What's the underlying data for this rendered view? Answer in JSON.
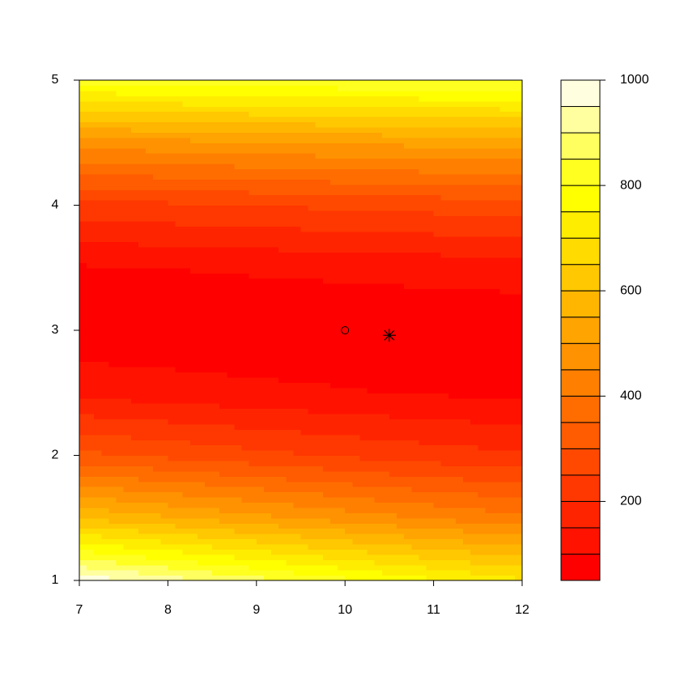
{
  "chart_data": {
    "type": "filled-contour",
    "x": [
      7,
      8,
      9,
      10,
      11,
      12
    ],
    "y": [
      1,
      1.5,
      2,
      2.5,
      3,
      3.5,
      4,
      4.5,
      5
    ],
    "z": [
      [
        986,
        926,
        868,
        813,
        760,
        710
      ],
      [
        598,
        557,
        517,
        480,
        446,
        413
      ],
      [
        314,
        289,
        266,
        244,
        224,
        206
      ],
      [
        136,
        124,
        113,
        104,
        96,
        89
      ],
      [
        62,
        61,
        60,
        60,
        61,
        62
      ],
      [
        94,
        100,
        106,
        112,
        118,
        125
      ],
      [
        230,
        240,
        250,
        260,
        269,
        278
      ],
      [
        472,
        483,
        494,
        504,
        513,
        521
      ],
      [
        818,
        828,
        836,
        843,
        849,
        854
      ]
    ],
    "xlim": [
      7,
      12
    ],
    "xticks": [
      7,
      8,
      9,
      10,
      11,
      12
    ],
    "ylim": [
      1,
      5
    ],
    "yticks": [
      1,
      2,
      3,
      4,
      5
    ],
    "levels": [
      50,
      100,
      150,
      200,
      250,
      300,
      350,
      400,
      450,
      500,
      550,
      600,
      650,
      700,
      750,
      800,
      850,
      900,
      950,
      1000
    ],
    "colors": [
      "#FF0000",
      "#FF1200",
      "#FF2400",
      "#FF3700",
      "#FF4900",
      "#FF5B00",
      "#FF6D00",
      "#FF8000",
      "#FF9200",
      "#FFA400",
      "#FFB600",
      "#FFC800",
      "#FFDB00",
      "#FFED00",
      "#FFFF00",
      "#FFFF20",
      "#FFFF60",
      "#FFFF9F",
      "#FFFFDF"
    ],
    "zlim": [
      50,
      1000
    ],
    "zticks": [
      200,
      400,
      600,
      800,
      1000
    ],
    "points": [
      {
        "x": 10,
        "y": 3,
        "shape": "circle"
      },
      {
        "x": 10.5,
        "y": 2.96,
        "shape": "star"
      }
    ]
  }
}
